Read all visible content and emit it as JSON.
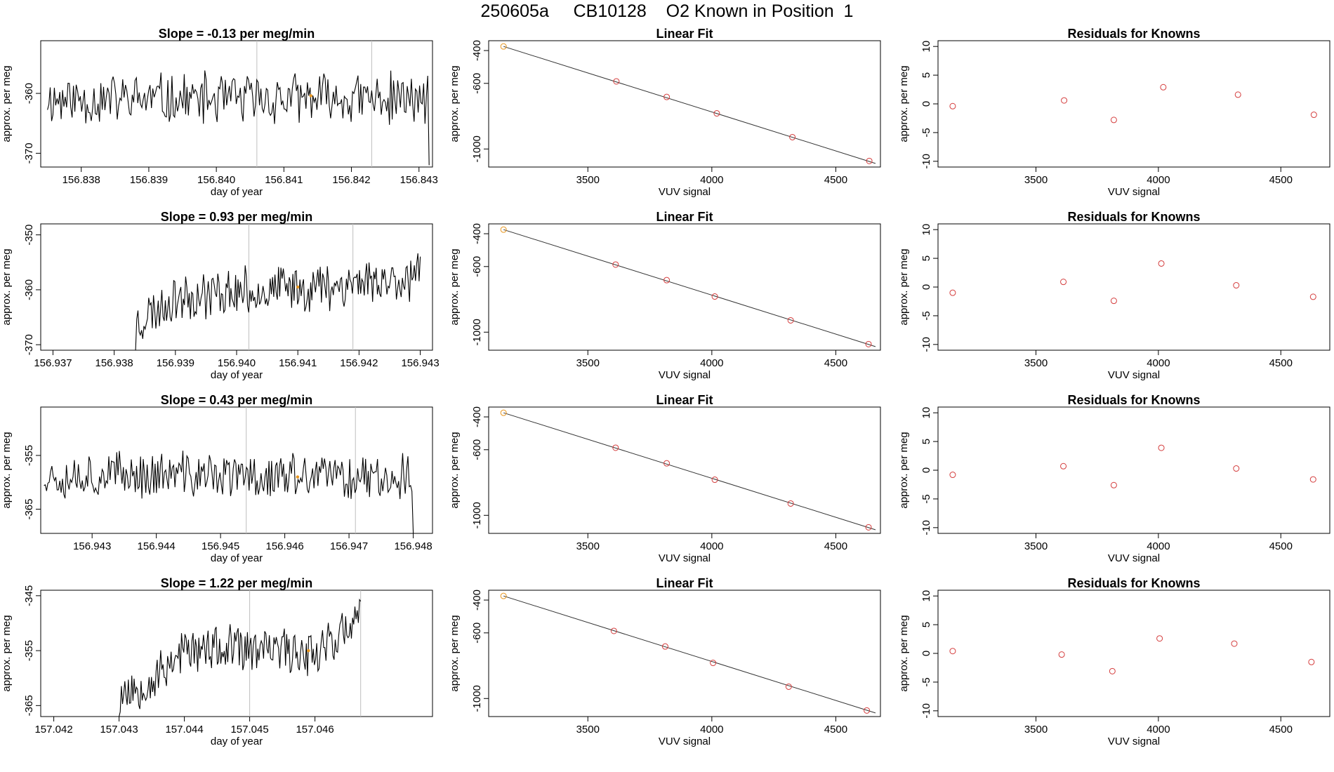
{
  "page_title": "250605a     CB10128    O2 Known in Position  1",
  "colors": {
    "trace": "#000000",
    "marker_line": "#bebebe",
    "first_known": "#e8961e",
    "known": "#d43c3c",
    "mean_marker": "#e8961e",
    "axis": "#000000"
  },
  "chart_data": [
    {
      "type": "line",
      "title": "Slope =  -0.13  per meg/min",
      "xlabel": "day of year",
      "ylabel": "approx. per meg",
      "xlim": [
        156.8374,
        156.8432
      ],
      "ylim": [
        -372.3,
        -351.2
      ],
      "xticks": [
        "156.838",
        "156.839",
        "156.840",
        "156.841",
        "156.842",
        "156.843"
      ],
      "xtick_values": [
        156.838,
        156.839,
        156.84,
        156.841,
        156.842,
        156.843
      ],
      "yticks": [
        "-360",
        "-370"
      ],
      "ytick_values": [
        -360,
        -370
      ],
      "vlines": [
        156.8406,
        156.8423
      ],
      "mean_point": [
        156.8414,
        -360.4
      ],
      "trace": {
        "x_start": 156.8375,
        "x_end": 156.84315,
        "n": 280,
        "seed": 11,
        "base": [
          [
            0,
            -361.0
          ],
          [
            1,
            -361.0
          ]
        ],
        "amp": 5,
        "tail": -372
      }
    },
    {
      "type": "scatter",
      "title": "Linear Fit",
      "xlabel": "VUV signal",
      "ylabel": "approx. per meg",
      "xlim": [
        3100,
        4680
      ],
      "ylim": [
        -1110,
        -340
      ],
      "xticks": [
        "3500",
        "4000",
        "4500"
      ],
      "xtick_values": [
        3500,
        4000,
        4500
      ],
      "yticks": [
        "-400",
        "-600",
        "-1000"
      ],
      "ytick_values": [
        -400,
        -600,
        -1000
      ],
      "x": [
        3160,
        3615,
        3818,
        4020,
        4325,
        4635
      ],
      "y": [
        -375,
        -588,
        -683,
        -783,
        -928,
        -1073
      ],
      "fit": [
        [
          3160,
          -375
        ],
        [
          4660,
          -1088
        ]
      ]
    },
    {
      "type": "scatter",
      "title": "Residuals for Knowns",
      "xlabel": "VUV signal",
      "ylabel": "approx. per meg",
      "xlim": [
        3100,
        4700
      ],
      "ylim": [
        -11,
        11
      ],
      "xticks": [
        "3500",
        "4000",
        "4500"
      ],
      "xtick_values": [
        3500,
        4000,
        4500
      ],
      "yticks": [
        "-10",
        "-5",
        "0",
        "5",
        "10"
      ],
      "ytick_values": [
        -10,
        -5,
        0,
        5,
        10
      ],
      "x": [
        3160,
        3615,
        3818,
        4020,
        4325,
        4635
      ],
      "y": [
        -0.4,
        0.6,
        -2.8,
        2.9,
        1.6,
        -1.9
      ]
    },
    {
      "type": "line",
      "title": "Slope =  0.93  per meg/min",
      "xlabel": "day of year",
      "ylabel": "approx. per meg",
      "xlim": [
        156.9368,
        156.9432
      ],
      "ylim": [
        -371,
        -348
      ],
      "xticks": [
        "156.937",
        "156.938",
        "156.939",
        "156.940",
        "156.941",
        "156.942",
        "156.943"
      ],
      "xtick_values": [
        156.937,
        156.938,
        156.939,
        156.94,
        156.941,
        156.942,
        156.943
      ],
      "yticks": [
        "-350",
        "-360",
        "-370"
      ],
      "ytick_values": [
        -350,
        -360,
        -370
      ],
      "vlines": [
        156.9402,
        156.9419
      ],
      "mean_point": [
        156.941,
        -359.5
      ],
      "trace": {
        "x_start": 156.93835,
        "x_end": 156.943,
        "n": 240,
        "seed": 23,
        "base": [
          [
            0,
            -366
          ],
          [
            0.15,
            -361
          ],
          [
            0.5,
            -360
          ],
          [
            1,
            -357.5
          ]
        ],
        "amp": 5,
        "head": -371
      }
    },
    {
      "type": "scatter",
      "title": "Linear Fit",
      "xlabel": "VUV signal",
      "ylabel": "approx. per meg",
      "xlim": [
        3100,
        4680
      ],
      "ylim": [
        -1110,
        -340
      ],
      "xticks": [
        "3500",
        "4000",
        "4500"
      ],
      "xtick_values": [
        3500,
        4000,
        4500
      ],
      "yticks": [
        "-400",
        "-600",
        "-1000"
      ],
      "ytick_values": [
        -400,
        -600,
        -1000
      ],
      "x": [
        3160,
        3612,
        3818,
        4012,
        4318,
        4632
      ],
      "y": [
        -375,
        -588,
        -683,
        -783,
        -928,
        -1073
      ],
      "fit": [
        [
          3160,
          -375
        ],
        [
          4660,
          -1088
        ]
      ]
    },
    {
      "type": "scatter",
      "title": "Residuals for Knowns",
      "xlabel": "VUV signal",
      "ylabel": "approx. per meg",
      "xlim": [
        3100,
        4700
      ],
      "ylim": [
        -11,
        11
      ],
      "xticks": [
        "3500",
        "4000",
        "4500"
      ],
      "xtick_values": [
        3500,
        4000,
        4500
      ],
      "yticks": [
        "-10",
        "-5",
        "0",
        "5",
        "10"
      ],
      "ytick_values": [
        -10,
        -5,
        0,
        5,
        10
      ],
      "x": [
        3160,
        3612,
        3818,
        4012,
        4318,
        4632
      ],
      "y": [
        -1.0,
        0.9,
        -2.4,
        4.1,
        0.3,
        -1.7
      ]
    },
    {
      "type": "line",
      "title": "Slope =  0.43  per meg/min",
      "xlabel": "day of year",
      "ylabel": "approx. per meg",
      "xlim": [
        156.9422,
        156.9483
      ],
      "ylim": [
        -369.5,
        -346
      ],
      "xticks": [
        "156.943",
        "156.944",
        "156.945",
        "156.946",
        "156.947",
        "156.948"
      ],
      "xtick_values": [
        156.943,
        156.944,
        156.945,
        156.946,
        156.947,
        156.948
      ],
      "yticks": [
        "-355",
        "-365"
      ],
      "ytick_values": [
        -355,
        -365
      ],
      "vlines": [
        156.9454,
        156.9471
      ],
      "mean_point": [
        156.9462,
        -359.0
      ],
      "trace": {
        "x_start": 156.94225,
        "x_end": 156.948,
        "n": 280,
        "seed": 37,
        "base": [
          [
            0,
            -358.5
          ],
          [
            1,
            -359.0
          ]
        ],
        "amp": 5,
        "tail": -369.5
      }
    },
    {
      "type": "scatter",
      "title": "Linear Fit",
      "xlabel": "VUV signal",
      "ylabel": "approx. per meg",
      "xlim": [
        3100,
        4680
      ],
      "ylim": [
        -1110,
        -340
      ],
      "xticks": [
        "3500",
        "4000",
        "4500"
      ],
      "xtick_values": [
        3500,
        4000,
        4500
      ],
      "yticks": [
        "-400",
        "-600",
        "-1000"
      ],
      "ytick_values": [
        -400,
        -600,
        -1000
      ],
      "x": [
        3160,
        3612,
        3818,
        4012,
        4318,
        4632
      ],
      "y": [
        -375,
        -588,
        -683,
        -783,
        -928,
        -1073
      ],
      "fit": [
        [
          3160,
          -375
        ],
        [
          4660,
          -1088
        ]
      ]
    },
    {
      "type": "scatter",
      "title": "Residuals for Knowns",
      "xlabel": "VUV signal",
      "ylabel": "approx. per meg",
      "xlim": [
        3100,
        4700
      ],
      "ylim": [
        -11,
        11
      ],
      "xticks": [
        "3500",
        "4000",
        "4500"
      ],
      "xtick_values": [
        3500,
        4000,
        4500
      ],
      "yticks": [
        "-10",
        "-5",
        "0",
        "5",
        "10"
      ],
      "ytick_values": [
        -10,
        -5,
        0,
        5,
        10
      ],
      "x": [
        3160,
        3612,
        3818,
        4012,
        4318,
        4632
      ],
      "y": [
        -0.8,
        0.7,
        -2.6,
        3.9,
        0.3,
        -1.6
      ]
    },
    {
      "type": "line",
      "title": "Slope =  1.22  per meg/min",
      "xlabel": "day of year",
      "ylabel": "approx. per meg",
      "xlim": [
        157.0418,
        157.0478
      ],
      "ylim": [
        -367,
        -344
      ],
      "xticks": [
        "157.042",
        "157.043",
        "157.044",
        "157.045",
        "157.046"
      ],
      "xtick_values": [
        157.042,
        157.043,
        157.044,
        157.045,
        157.046
      ],
      "yticks": [
        "-345",
        "-355",
        "-365"
      ],
      "ytick_values": [
        -345,
        -355,
        -365
      ],
      "vlines": [
        157.045,
        157.0467
      ],
      "mean_point": [
        157.0459,
        -355.0
      ],
      "trace": {
        "x_start": 157.043,
        "x_end": 157.0467,
        "n": 210,
        "seed": 53,
        "base": [
          [
            0,
            -363
          ],
          [
            0.15,
            -360
          ],
          [
            0.25,
            -355
          ],
          [
            0.8,
            -355
          ],
          [
            1,
            -350
          ]
        ],
        "amp": 5,
        "head": -367,
        "last": -346
      }
    },
    {
      "type": "scatter",
      "title": "Linear Fit",
      "xlabel": "VUV signal",
      "ylabel": "approx. per meg",
      "xlim": [
        3100,
        4680
      ],
      "ylim": [
        -1110,
        -340
      ],
      "xticks": [
        "3500",
        "4000",
        "4500"
      ],
      "xtick_values": [
        3500,
        4000,
        4500
      ],
      "yticks": [
        "-400",
        "-600",
        "-1000"
      ],
      "ytick_values": [
        -400,
        -600,
        -1000
      ],
      "x": [
        3160,
        3605,
        3812,
        4005,
        4310,
        4625
      ],
      "y": [
        -375,
        -588,
        -683,
        -783,
        -928,
        -1073
      ],
      "fit": [
        [
          3160,
          -375
        ],
        [
          4660,
          -1088
        ]
      ]
    },
    {
      "type": "scatter",
      "title": "Residuals for Knowns",
      "xlabel": "VUV signal",
      "ylabel": "approx. per meg",
      "xlim": [
        3100,
        4700
      ],
      "ylim": [
        -11,
        11
      ],
      "xticks": [
        "3500",
        "4000",
        "4500"
      ],
      "xtick_values": [
        3500,
        4000,
        4500
      ],
      "yticks": [
        "-10",
        "-5",
        "0",
        "5",
        "10"
      ],
      "ytick_values": [
        -10,
        -5,
        0,
        5,
        10
      ],
      "x": [
        3160,
        3605,
        3812,
        4005,
        4310,
        4625
      ],
      "y": [
        0.4,
        -0.2,
        -3.1,
        2.6,
        1.7,
        -1.5
      ]
    }
  ]
}
